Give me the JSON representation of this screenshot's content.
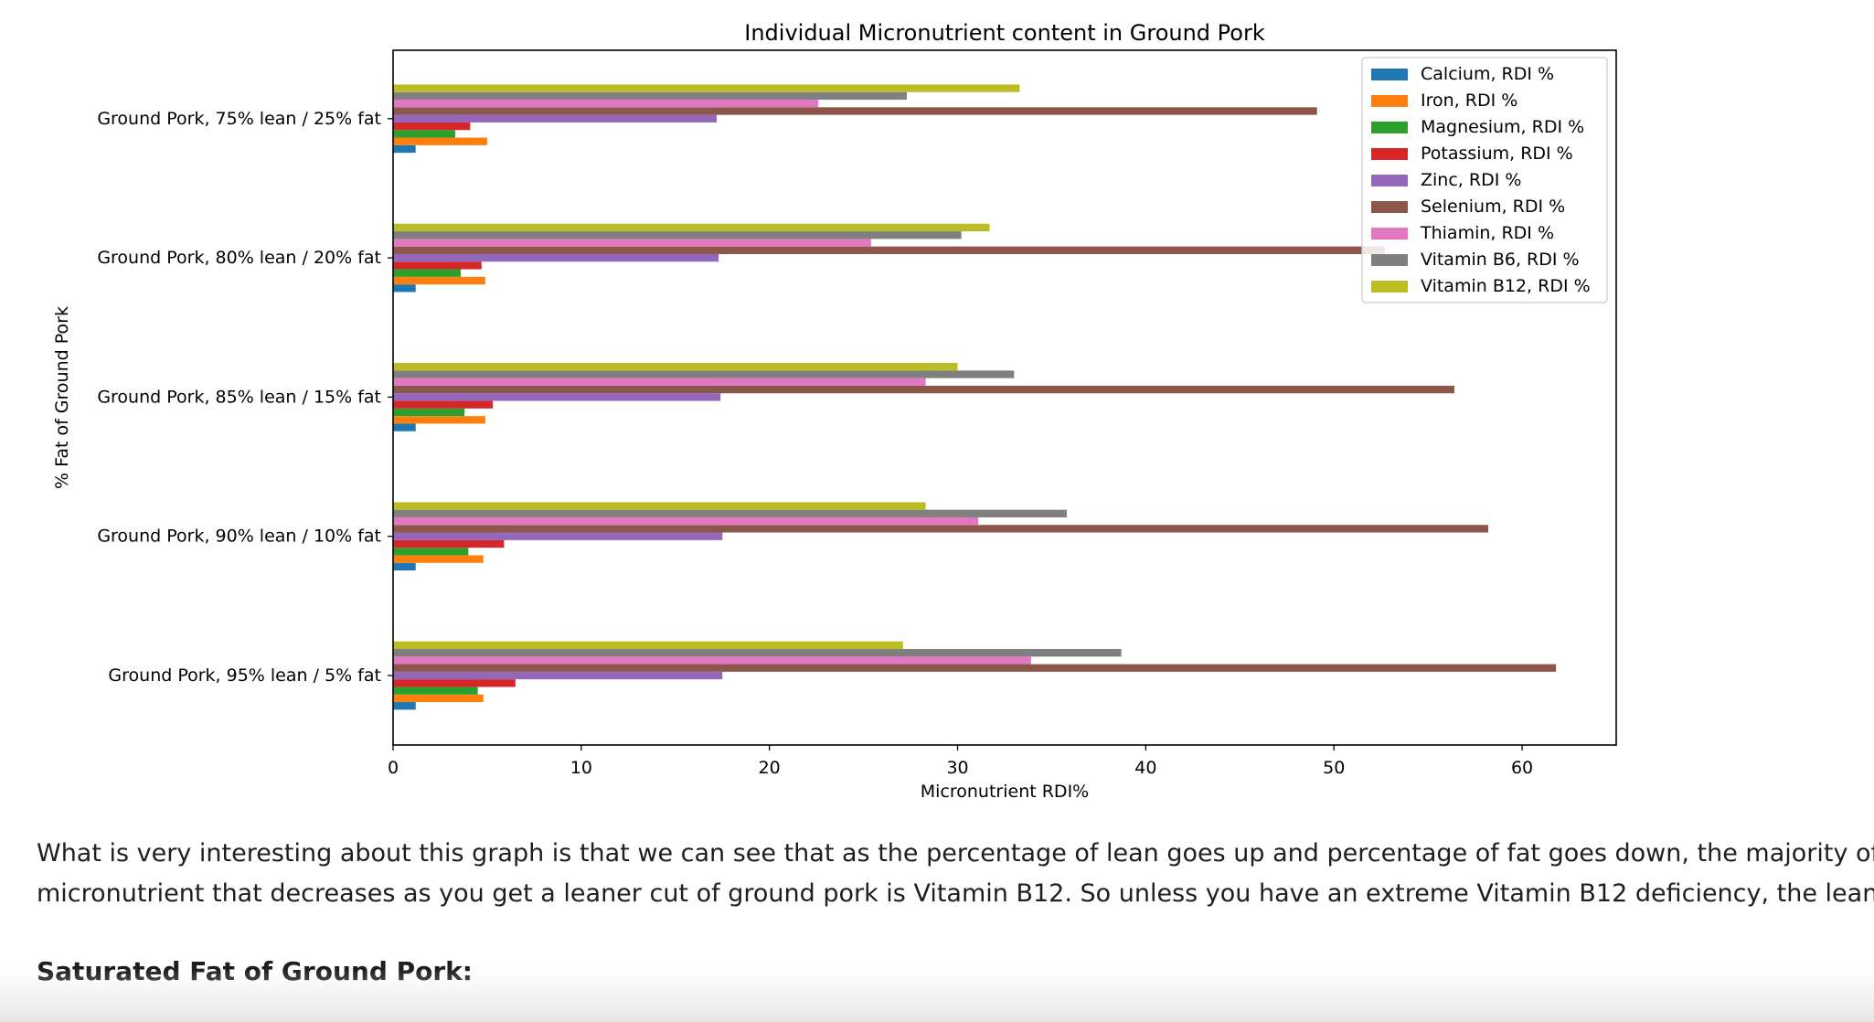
{
  "chart_data": {
    "type": "bar",
    "orientation": "horizontal",
    "title": "Individual Micronutrient content in Ground Pork",
    "xlabel": "Micronutrient RDI%",
    "ylabel": "% Fat of Ground Pork",
    "xlim": [
      0,
      65
    ],
    "xticks": [
      0,
      10,
      20,
      30,
      40,
      50,
      60
    ],
    "grid": false,
    "legend": "top-right",
    "categories": [
      "Ground Pork, 95% lean / 5% fat",
      "Ground Pork, 90% lean / 10% fat",
      "Ground Pork, 85% lean / 15% fat",
      "Ground Pork, 80% lean / 20% fat",
      "Ground Pork, 75% lean / 25% fat"
    ],
    "series": [
      {
        "name": "Calcium, RDI %",
        "color": "#1f77b4",
        "values": [
          1.2,
          1.2,
          1.2,
          1.2,
          1.2
        ]
      },
      {
        "name": "Iron, RDI %",
        "color": "#ff7f0e",
        "values": [
          4.8,
          4.8,
          4.9,
          4.9,
          5.0
        ]
      },
      {
        "name": "Magnesium, RDI %",
        "color": "#2ca02c",
        "values": [
          4.5,
          4.0,
          3.8,
          3.6,
          3.3
        ]
      },
      {
        "name": "Potassium, RDI %",
        "color": "#d62728",
        "values": [
          6.5,
          5.9,
          5.3,
          4.7,
          4.1
        ]
      },
      {
        "name": "Zinc, RDI %",
        "color": "#9467bd",
        "values": [
          17.5,
          17.5,
          17.4,
          17.3,
          17.2
        ]
      },
      {
        "name": "Selenium, RDI %",
        "color": "#8c564b",
        "values": [
          61.8,
          58.2,
          56.4,
          52.7,
          49.1
        ]
      },
      {
        "name": "Thiamin, RDI %",
        "color": "#e377c2",
        "values": [
          33.9,
          31.1,
          28.3,
          25.4,
          22.6
        ]
      },
      {
        "name": "Vitamin B6, RDI %",
        "color": "#7f7f7f",
        "values": [
          38.7,
          35.8,
          33.0,
          30.2,
          27.3
        ]
      },
      {
        "name": "Vitamin B12, RDI %",
        "color": "#bcbd22",
        "values": [
          27.1,
          28.3,
          30.0,
          31.7,
          33.3
        ]
      }
    ]
  },
  "article": {
    "paragraph_line1": "What is very interesting about this graph is that we can see that as the percentage of lean goes up and percentage of fat goes down, the majority of the nutrients go up. The only",
    "paragraph_line2": "micronutrient that decreases as you get a leaner cut of ground pork is Vitamin B12. So unless you have an extreme Vitamin B12 deficiency, the leanest ground pork is the best option.",
    "subheading": "Saturated Fat of Ground Pork:"
  }
}
